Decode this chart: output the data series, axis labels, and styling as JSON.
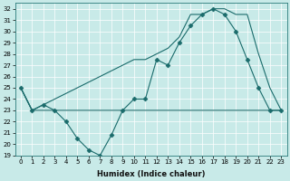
{
  "xlabel": "Humidex (Indice chaleur)",
  "xlim": [
    -0.5,
    23.5
  ],
  "ylim": [
    19,
    32.5
  ],
  "yticks": [
    19,
    20,
    21,
    22,
    23,
    24,
    25,
    26,
    27,
    28,
    29,
    30,
    31,
    32
  ],
  "xticks": [
    0,
    1,
    2,
    3,
    4,
    5,
    6,
    7,
    8,
    9,
    10,
    11,
    12,
    13,
    14,
    15,
    16,
    17,
    18,
    19,
    20,
    21,
    22,
    23
  ],
  "bg_color": "#c8eae8",
  "line_color": "#1a6b6b",
  "series": [
    {
      "x": [
        0,
        1,
        2,
        3,
        4,
        5,
        6,
        7,
        8,
        9,
        10,
        11,
        12,
        13,
        14,
        15,
        16,
        17,
        18,
        19,
        20,
        21,
        22,
        23
      ],
      "y": [
        25.0,
        23.0,
        23.5,
        23.0,
        22.0,
        20.5,
        19.5,
        19.0,
        20.8,
        23.0,
        24.0,
        24.0,
        27.5,
        27.0,
        29.0,
        30.5,
        31.5,
        32.0,
        31.5,
        30.0,
        27.5,
        25.0,
        23.0,
        23.0
      ],
      "marker": "D",
      "markersize": 2.5,
      "lw": 0.8
    },
    {
      "x": [
        0,
        1,
        2,
        3,
        23
      ],
      "y": [
        25.0,
        23.0,
        23.0,
        23.0,
        23.0
      ],
      "marker": null,
      "markersize": 0,
      "lw": 0.8
    },
    {
      "x": [
        0,
        1,
        2,
        3,
        10,
        11,
        12,
        13,
        14,
        15,
        16,
        17,
        18,
        19,
        20,
        21,
        22,
        23
      ],
      "y": [
        25.0,
        23.0,
        23.5,
        24.0,
        27.5,
        27.5,
        28.0,
        28.5,
        29.5,
        31.5,
        31.5,
        32.0,
        32.0,
        31.5,
        31.5,
        28.0,
        25.0,
        23.0
      ],
      "marker": null,
      "markersize": 0,
      "lw": 0.8
    }
  ]
}
